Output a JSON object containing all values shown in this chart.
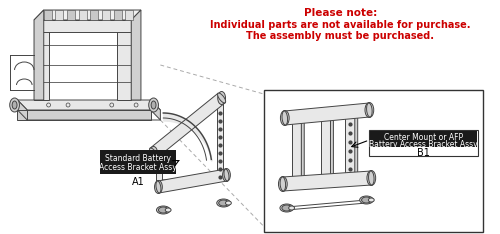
{
  "title_note": "Please note:",
  "title_line2": "Individual parts are not available for purchase.",
  "title_line3": "The assembly must be purchased.",
  "label_A1_line1": "Standard Battery",
  "label_A1_line2": "Access Bracket Assy",
  "label_A1_code": "A1",
  "label_B1_line1": "Center Mount or AFP",
  "label_B1_line2": "Battery Access Bracket Assy",
  "label_B1_code": "B1",
  "bg_color": "#ffffff",
  "text_color_red": "#cc0000",
  "text_color_black": "#000000",
  "label_bg": "#1a1a1a",
  "label_fg": "#ffffff",
  "box_color": "#333333",
  "lc": "#444444",
  "lc_light": "#888888",
  "fill_light": "#e8e8e8",
  "fill_mid": "#d0d0d0",
  "fill_dark": "#b0b0b0",
  "dashed_line_color": "#aaaaaa"
}
